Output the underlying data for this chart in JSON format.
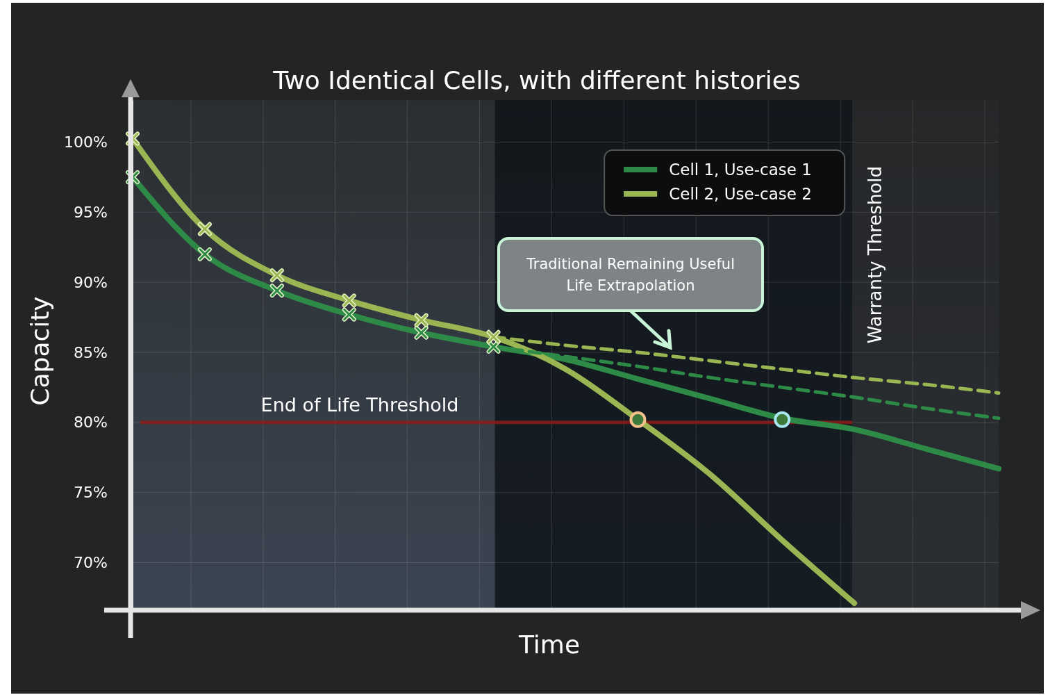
{
  "chart_data": {
    "type": "line",
    "title": "Two Identical Cells, with different histories",
    "xlabel": "Time",
    "ylabel": "Capacity",
    "categories": [
      null,
      null,
      null,
      null,
      null,
      null,
      null,
      null,
      null,
      null,
      null,
      null,
      null
    ],
    "ylim": [
      66.6,
      103
    ],
    "yticks": [
      {
        "value": 70,
        "label": "70%"
      },
      {
        "value": 75,
        "label": "75%"
      },
      {
        "value": 80,
        "label": "80%"
      },
      {
        "value": 85,
        "label": "85%"
      },
      {
        "value": 90,
        "label": "90%"
      },
      {
        "value": 95,
        "label": "95%"
      },
      {
        "value": 100,
        "label": "100%"
      }
    ],
    "grid": true,
    "legend": "top right",
    "series": [
      {
        "name": "Cell 1, Use-case 1",
        "color": "#2e8b47",
        "marker": "none",
        "line_style": "solid",
        "values": [
          97.5,
          92.0,
          89.4,
          87.7,
          86.4,
          85.4,
          84.5,
          83.1,
          81.7,
          80.3,
          79.5,
          78.1,
          76.7
        ]
      },
      {
        "name": "Cell 2, Use-case 2",
        "color": "#9ab653",
        "marker": "none",
        "line_style": "solid",
        "values": [
          100.25,
          93.8,
          90.5,
          88.7,
          87.3,
          86.1,
          83.8,
          80.2,
          76.3,
          71.6,
          67.1,
          null,
          null
        ]
      },
      {
        "color": "#2e8b47",
        "marker": "none",
        "line_style": "dashed",
        "values": [
          null,
          null,
          null,
          null,
          null,
          85.4,
          84.7,
          84.0,
          83.2,
          82.5,
          81.8,
          81.0,
          80.3
        ]
      },
      {
        "color": "#9ab653",
        "marker": "none",
        "line_style": "dashed",
        "values": [
          null,
          null,
          null,
          null,
          null,
          86.1,
          85.5,
          85.0,
          84.4,
          83.8,
          83.2,
          82.7,
          82.1
        ]
      },
      {
        "type": "scatter",
        "color": "#2e8b47",
        "marker": "cross",
        "values": [
          97.5,
          92.0,
          89.4,
          87.7,
          86.4,
          85.4,
          null,
          null,
          null,
          null,
          null,
          null,
          null
        ]
      },
      {
        "type": "scatter",
        "color": "#9ab653",
        "marker": "cross",
        "values": [
          100.25,
          93.8,
          90.5,
          88.7,
          87.3,
          86.1,
          null,
          null,
          null,
          null,
          null,
          null,
          null
        ]
      },
      {
        "type": "scatter",
        "color": "#a8e6f0",
        "marker": "circle",
        "values": [
          null,
          null,
          null,
          null,
          null,
          null,
          null,
          null,
          null,
          80.2,
          null,
          null,
          null
        ]
      },
      {
        "type": "scatter",
        "color": "#f5c08a",
        "marker": "circle",
        "values": [
          null,
          null,
          null,
          null,
          null,
          null,
          null,
          80.2,
          null,
          null,
          null,
          null,
          null
        ]
      }
    ],
    "ref_lines": [
      {
        "axis": "y",
        "value": 80,
        "label": "End of Life Threshold",
        "color": "#8b1a1a"
      }
    ],
    "annotations": [
      "Traditional Remaining Useful Life Extrapolation",
      "Warranty Threshold"
    ]
  }
}
